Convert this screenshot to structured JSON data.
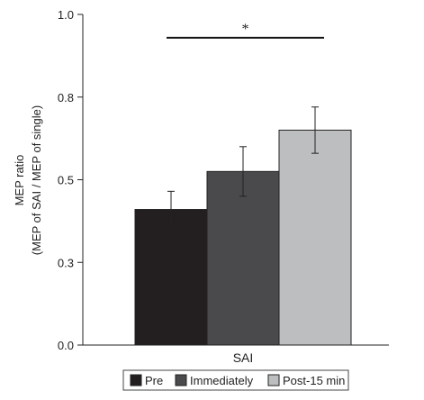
{
  "chart_data": {
    "type": "bar",
    "categories": [
      "SAI"
    ],
    "series": [
      {
        "name": "Pre",
        "values": [
          0.41
        ],
        "error": [
          0.055
        ],
        "color": "#231f20"
      },
      {
        "name": "Immediately",
        "values": [
          0.525
        ],
        "error": [
          0.075
        ],
        "color": "#4a4a4c"
      },
      {
        "name": "Post-15 min",
        "values": [
          0.65
        ],
        "error": [
          0.07
        ],
        "color": "#bdbebf"
      }
    ],
    "ylabel_line1": "MEP ratio",
    "ylabel_line2": "(MEP of SAI / MEP of single)",
    "yticks": [
      {
        "value": 0.0,
        "label": "0.0"
      },
      {
        "value": 0.25,
        "label": "0.3"
      },
      {
        "value": 0.5,
        "label": "0.5"
      },
      {
        "value": 0.75,
        "label": "0.8"
      },
      {
        "value": 1.0,
        "label": "1.0"
      }
    ],
    "ylim": [
      0,
      1.0
    ],
    "significance": {
      "label": "*",
      "from_series": 0,
      "to_series": 2,
      "y": 0.965
    },
    "legend_position": "bottom",
    "grid": false
  }
}
